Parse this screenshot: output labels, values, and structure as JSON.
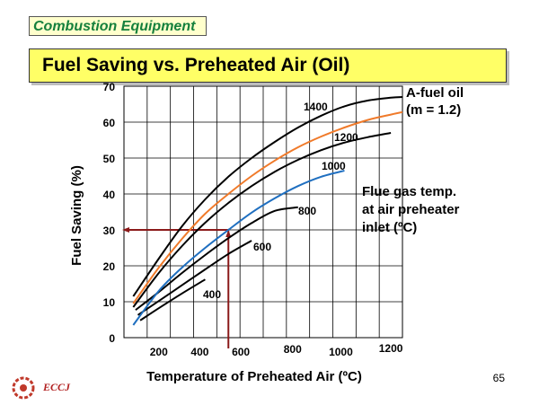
{
  "header": {
    "section": "Combustion Equipment",
    "title": "Fuel Saving vs. Preheated Air (Oil)"
  },
  "footer": {
    "page_number": "65",
    "logo_text": "ECCJ"
  },
  "chart_data": {
    "type": "line",
    "xlabel": "Temperature of Preheated Air (ºC)",
    "ylabel": "Fuel Saving (%)",
    "xlim": [
      50,
      1250
    ],
    "ylim": [
      0,
      70
    ],
    "x_ticks": [
      200,
      400,
      600,
      800,
      1000,
      1200
    ],
    "y_ticks": [
      0,
      10,
      20,
      30,
      40,
      50,
      60,
      70
    ],
    "grid": true,
    "annotation_fuel": "A-fuel oil\n(m = 1.2)",
    "annotation_flue": "Flue gas temp.\nat air preheater\ninlet (ºC)",
    "colors": {
      "black": "#000000",
      "orange": "#f07a2a",
      "blue": "#1f6fc0",
      "guide": "#8b1a1a"
    },
    "series": [
      {
        "name": "400",
        "color": "black",
        "x": [
          120,
          200,
          300,
          400
        ],
        "y": [
          4.8,
          8.2,
          12.3,
          16.2
        ]
      },
      {
        "name": "600",
        "color": "black",
        "x": [
          110,
          200,
          300,
          400,
          500,
          600
        ],
        "y": [
          6.3,
          10.2,
          14.6,
          19.0,
          23.3,
          27.0
        ]
      },
      {
        "name": "800",
        "color": "black",
        "x": [
          100,
          200,
          300,
          400,
          500,
          600,
          700,
          800
        ],
        "y": [
          7.7,
          12.7,
          18.0,
          23.0,
          27.7,
          31.9,
          35.3,
          36.3
        ]
      },
      {
        "name": "1000",
        "color": "blue",
        "x": [
          90,
          200,
          300,
          400,
          500,
          600,
          700,
          800,
          900,
          1000
        ],
        "y": [
          3.5,
          13.0,
          19.5,
          25.0,
          30.0,
          34.8,
          38.8,
          42.2,
          44.8,
          46.5
        ]
      },
      {
        "name": "1200",
        "color": "black",
        "x": [
          90,
          200,
          300,
          400,
          500,
          600,
          700,
          800,
          900,
          1000,
          1100,
          1200
        ],
        "y": [
          8.5,
          18.0,
          25.5,
          32.0,
          37.5,
          42.2,
          46.2,
          49.5,
          52.2,
          54.3,
          55.8,
          57.0
        ]
      },
      {
        "name": "",
        "color": "orange",
        "x": [
          90,
          200,
          300,
          400,
          500,
          600,
          700,
          800,
          900,
          1000,
          1100,
          1200,
          1250
        ],
        "y": [
          9.5,
          19.5,
          27.5,
          34.5,
          40.0,
          45.0,
          49.3,
          53.0,
          56.0,
          58.5,
          60.6,
          62.1,
          62.8
        ]
      },
      {
        "name": "1400",
        "color": "black",
        "x": [
          90,
          200,
          300,
          400,
          500,
          600,
          700,
          800,
          900,
          1000,
          1100,
          1200,
          1250
        ],
        "y": [
          11.5,
          22.0,
          31.0,
          38.5,
          44.8,
          50.0,
          54.5,
          58.5,
          61.8,
          64.4,
          66.0,
          66.8,
          67.0
        ]
      }
    ],
    "guide": {
      "x": 500,
      "y": 30
    }
  }
}
